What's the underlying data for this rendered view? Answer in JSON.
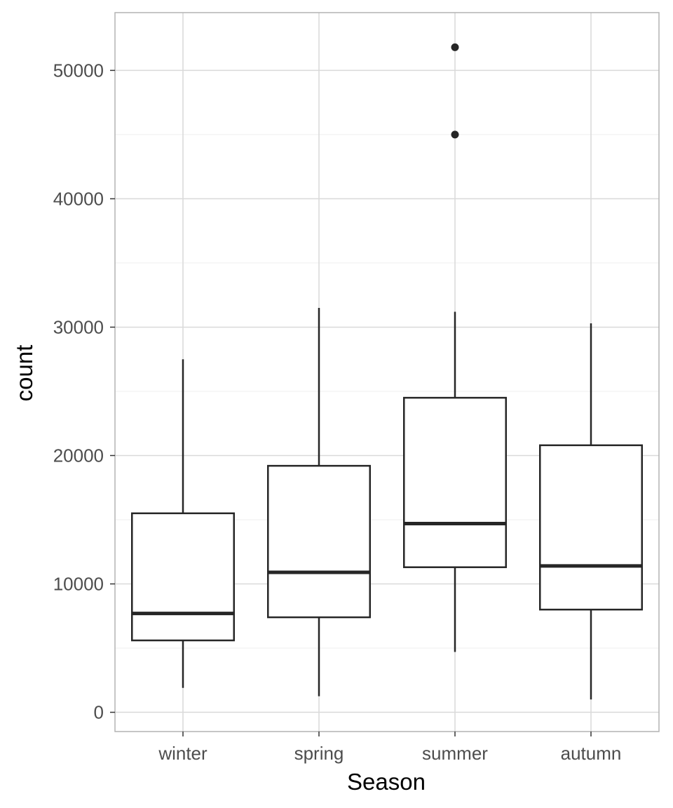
{
  "chart_data": {
    "type": "boxplot",
    "title": "",
    "xlabel": "Season",
    "ylabel": "count",
    "categories": [
      "winter",
      "spring",
      "summer",
      "autumn"
    ],
    "ylim": [
      -1500,
      54500
    ],
    "yticks": [
      0,
      10000,
      20000,
      30000,
      40000,
      50000
    ],
    "grid": true,
    "boxes": [
      {
        "category": "winter",
        "whisker_low": 1900,
        "q1": 5600,
        "median": 7700,
        "q3": 15500,
        "whisker_high": 27500,
        "outliers": []
      },
      {
        "category": "spring",
        "whisker_low": 1250,
        "q1": 7400,
        "median": 10900,
        "q3": 19200,
        "whisker_high": 31500,
        "outliers": []
      },
      {
        "category": "summer",
        "whisker_low": 4700,
        "q1": 11300,
        "median": 14700,
        "q3": 24500,
        "whisker_high": 31200,
        "outliers": [
          45000,
          51800
        ]
      },
      {
        "category": "autumn",
        "whisker_low": 1000,
        "q1": 8000,
        "median": 11400,
        "q3": 20800,
        "whisker_high": 30300,
        "outliers": []
      }
    ],
    "colors": {
      "box_stroke": "#262626",
      "grid": "#d9d9d9",
      "panel_border": "#b3b3b3",
      "tick_text": "#4d4d4d"
    }
  }
}
